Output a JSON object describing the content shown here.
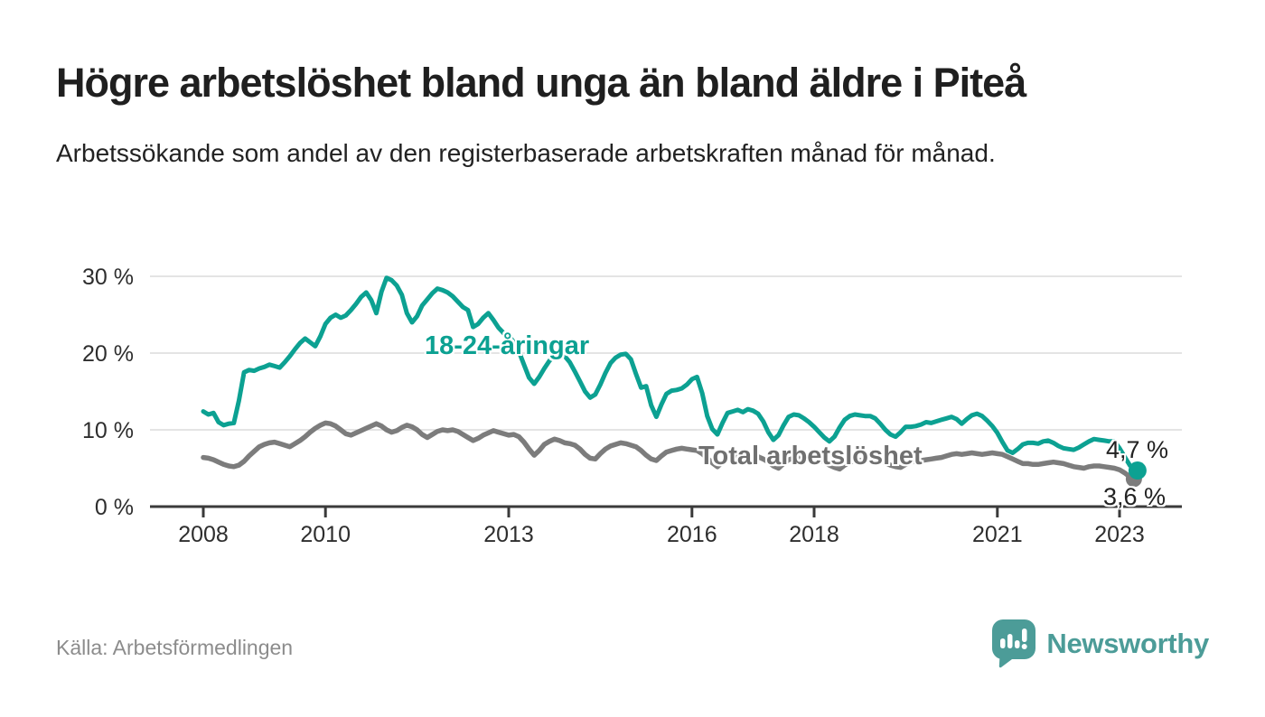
{
  "header": {
    "title": "Högre arbetslöshet bland unga än bland äldre i Piteå",
    "subtitle": "Arbetssökande som andel av den registerbaserade arbetskraften månad för månad."
  },
  "chart_data": {
    "type": "line",
    "title": "Högre arbetslöshet bland unga än bland äldre i Piteå",
    "x_unit": "month",
    "x_start": "2008-01",
    "x_end": "2023-04",
    "ylabel": "%",
    "ylim": [
      0,
      32
    ],
    "grid": "horizontal",
    "legend": "inline-labels",
    "yticks": [
      {
        "value": 0,
        "label": "0 %"
      },
      {
        "value": 10,
        "label": "10 %"
      },
      {
        "value": 20,
        "label": "20 %"
      },
      {
        "value": 30,
        "label": "30 %"
      }
    ],
    "xticks": [
      {
        "year": 2008,
        "label": "2008"
      },
      {
        "year": 2010,
        "label": "2010"
      },
      {
        "year": 2013,
        "label": "2013"
      },
      {
        "year": 2016,
        "label": "2016"
      },
      {
        "year": 2018,
        "label": "2018"
      },
      {
        "year": 2021,
        "label": "2021"
      },
      {
        "year": 2023,
        "label": "2023"
      }
    ],
    "series": [
      {
        "id": "youth",
        "name": "18-24-åringar",
        "color": "#0ca192",
        "end_value": 4.7,
        "end_label": "4,7 %",
        "values": [
          12.4,
          12.0,
          12.2,
          11.0,
          10.6,
          10.8,
          10.9,
          13.8,
          17.5,
          17.8,
          17.7,
          18.0,
          18.2,
          18.5,
          18.3,
          18.1,
          18.8,
          19.6,
          20.5,
          21.3,
          21.9,
          21.4,
          20.9,
          22.2,
          23.8,
          24.6,
          25.0,
          24.6,
          24.9,
          25.6,
          26.4,
          27.3,
          27.9,
          26.9,
          25.2,
          28.0,
          29.8,
          29.5,
          28.8,
          27.6,
          25.2,
          24.0,
          24.8,
          26.2,
          27.0,
          27.8,
          28.4,
          28.2,
          27.9,
          27.4,
          26.7,
          26.0,
          25.6,
          23.4,
          23.8,
          24.6,
          25.2,
          24.3,
          23.3,
          22.6,
          22.3,
          21.4,
          20.2,
          18.5,
          16.8,
          16.0,
          16.9,
          18.0,
          19.0,
          19.7,
          20.2,
          19.6,
          18.8,
          17.6,
          16.3,
          15.0,
          14.2,
          14.6,
          15.9,
          17.4,
          18.7,
          19.4,
          19.8,
          19.9,
          19.2,
          17.3,
          15.5,
          15.7,
          13.2,
          11.7,
          13.3,
          14.7,
          15.1,
          15.2,
          15.4,
          15.9,
          16.6,
          16.9,
          14.8,
          11.8,
          10.1,
          9.4,
          10.9,
          12.2,
          12.4,
          12.6,
          12.3,
          12.7,
          12.5,
          12.1,
          11.1,
          9.7,
          8.7,
          9.3,
          10.6,
          11.7,
          12.0,
          11.9,
          11.5,
          11.0,
          10.4,
          9.7,
          9.0,
          8.5,
          9.1,
          10.3,
          11.3,
          11.8,
          12.0,
          11.9,
          11.8,
          11.8,
          11.5,
          10.8,
          10.0,
          9.4,
          9.1,
          9.7,
          10.4,
          10.4,
          10.5,
          10.7,
          11.0,
          10.9,
          11.1,
          11.3,
          11.5,
          11.7,
          11.4,
          10.8,
          11.4,
          11.9,
          12.1,
          11.8,
          11.2,
          10.5,
          9.6,
          8.4,
          7.3,
          7.0,
          7.5,
          8.1,
          8.3,
          8.3,
          8.2,
          8.5,
          8.6,
          8.3,
          7.9,
          7.6,
          7.5,
          7.4,
          7.7,
          8.1,
          8.5,
          8.8,
          8.7,
          8.6,
          8.5,
          8.5,
          7.6,
          6.5,
          5.4,
          4.7
        ]
      },
      {
        "id": "total",
        "name": "Total arbetslöshet",
        "color": "#7c7c7c",
        "end_value": 3.6,
        "end_label": "3,6 %",
        "values": [
          6.4,
          6.3,
          6.1,
          5.8,
          5.5,
          5.3,
          5.2,
          5.4,
          5.9,
          6.6,
          7.2,
          7.8,
          8.1,
          8.3,
          8.4,
          8.2,
          8.0,
          7.8,
          8.2,
          8.6,
          9.1,
          9.7,
          10.2,
          10.6,
          10.9,
          10.8,
          10.5,
          10.0,
          9.5,
          9.3,
          9.6,
          9.9,
          10.2,
          10.5,
          10.8,
          10.5,
          10.0,
          9.7,
          9.9,
          10.3,
          10.6,
          10.4,
          10.0,
          9.4,
          9.0,
          9.4,
          9.8,
          10.0,
          9.9,
          10.0,
          9.8,
          9.4,
          9.0,
          8.6,
          8.9,
          9.3,
          9.6,
          9.9,
          9.7,
          9.5,
          9.3,
          9.4,
          9.1,
          8.4,
          7.5,
          6.7,
          7.3,
          8.1,
          8.5,
          8.8,
          8.6,
          8.3,
          8.2,
          8.0,
          7.5,
          6.8,
          6.3,
          6.2,
          6.9,
          7.5,
          7.9,
          8.1,
          8.3,
          8.2,
          8.0,
          7.8,
          7.3,
          6.7,
          6.2,
          6.0,
          6.6,
          7.1,
          7.3,
          7.5,
          7.6,
          7.5,
          7.4,
          7.3,
          6.9,
          6.3,
          5.7,
          5.2,
          5.8,
          6.3,
          6.5,
          6.7,
          6.8,
          6.7,
          6.6,
          6.5,
          6.2,
          5.8,
          5.3,
          5.0,
          5.6,
          6.1,
          6.3,
          6.4,
          6.4,
          6.3,
          6.2,
          6.1,
          5.8,
          5.4,
          5.1,
          4.9,
          5.4,
          5.8,
          5.9,
          6.0,
          6.1,
          6.0,
          6.0,
          5.9,
          5.7,
          5.4,
          5.2,
          5.1,
          5.5,
          5.8,
          5.9,
          6.0,
          6.1,
          6.2,
          6.3,
          6.4,
          6.6,
          6.8,
          6.9,
          6.8,
          6.9,
          7.0,
          6.9,
          6.8,
          6.9,
          7.0,
          6.9,
          6.8,
          6.5,
          6.2,
          5.9,
          5.6,
          5.6,
          5.5,
          5.5,
          5.6,
          5.7,
          5.8,
          5.7,
          5.6,
          5.4,
          5.2,
          5.1,
          5.0,
          5.2,
          5.3,
          5.3,
          5.2,
          5.1,
          5.0,
          4.8,
          4.4,
          3.9,
          3.6
        ]
      }
    ],
    "colors": {
      "accent_teal": "#0ca192",
      "line_gray": "#7c7c7c",
      "axis": "#3a3a3a",
      "gridline": "#dbdbdb",
      "axis_text": "#2e2e2e"
    }
  },
  "footer": {
    "source": "Källa: Arbetsförmedlingen",
    "brand": "Newsworthy"
  }
}
